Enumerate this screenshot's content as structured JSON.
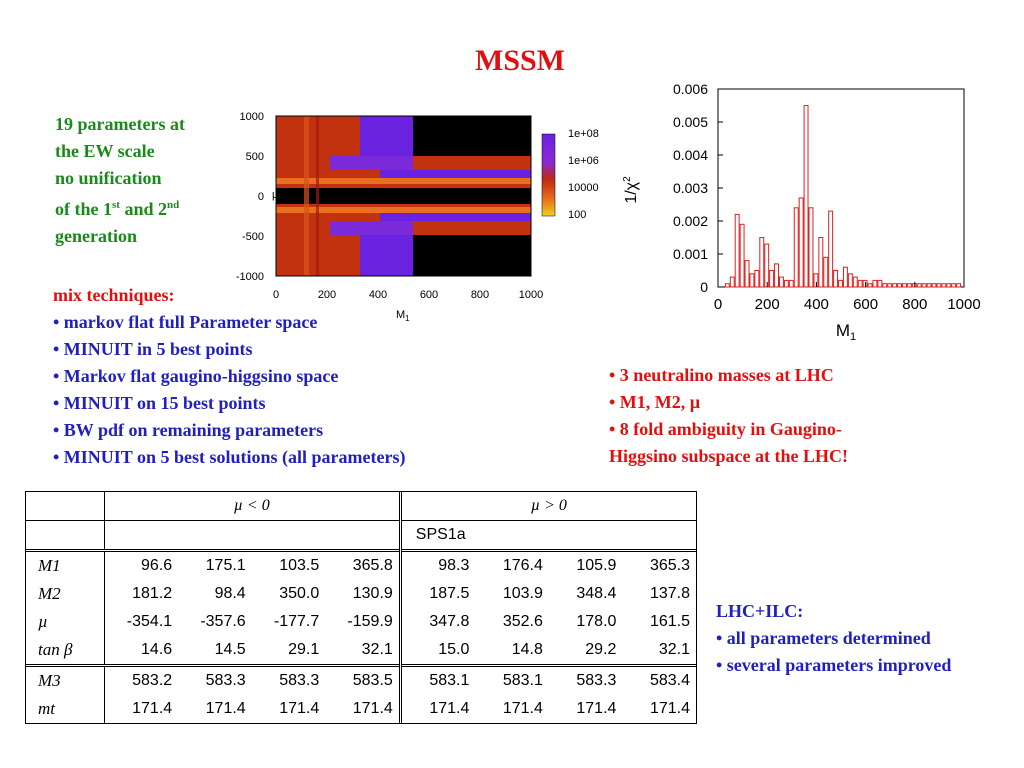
{
  "title": "MSSM",
  "intro": {
    "line1": "19 parameters at",
    "line2": "the EW scale",
    "line3": "no unification",
    "line4a": "of the 1",
    "line4sup1": "st",
    "line4b": " and 2",
    "line4sup2": "nd",
    "line5": "generation"
  },
  "mix": {
    "heading": "mix techniques:",
    "items": [
      "• markov flat full Parameter space",
      "• MINUIT in 5 best points",
      "• Markov flat gaugino-higgsino space",
      "• MINUIT on 15 best points",
      "• BW pdf on remaining parameters",
      "• MINUIT on 5 best solutions (all parameters)"
    ]
  },
  "neutralino": {
    "items": [
      "• 3 neutralino masses at LHC",
      "• M1, M2, µ",
      "• 8 fold ambiguity in Gaugino-",
      "Higgsino subspace at the LHC!"
    ]
  },
  "lhcilc": {
    "heading": "LHC+ILC:",
    "items": [
      "• all parameters determined",
      "• several parameters improved"
    ]
  },
  "scan_plot": {
    "y_ticks": [
      "1000",
      "500",
      "0",
      "-500",
      "-1000"
    ],
    "x_ticks": [
      "0",
      "200",
      "400",
      "600",
      "800",
      "1000"
    ],
    "x_label": "M",
    "x_label_sub": "1",
    "y_label": "µ",
    "colorbar_ticks": [
      "1e+08",
      "1e+06",
      "10000",
      "100"
    ],
    "colors": {
      "purple": "#6a22e0",
      "orange": "#e05a10",
      "red": "#b01a10",
      "black": "#000000",
      "yellow": "#f0d020"
    }
  },
  "chart_data": {
    "type": "bar",
    "title": "",
    "xlabel": "M",
    "xlabel_sub": "1",
    "ylabel": "1/χ",
    "ylabel_sup": "2",
    "xlim": [
      0,
      1000
    ],
    "ylim": [
      0,
      0.006
    ],
    "x_ticks": [
      "0",
      "200",
      "400",
      "600",
      "800",
      "1000"
    ],
    "y_ticks": [
      "0",
      "0.001",
      "0.002",
      "0.003",
      "0.004",
      "0.005",
      "0.006"
    ],
    "bin_width": 20,
    "x": [
      40,
      60,
      80,
      100,
      120,
      140,
      160,
      180,
      200,
      220,
      240,
      260,
      280,
      300,
      320,
      340,
      360,
      380,
      400,
      420,
      440,
      460,
      480,
      500,
      520,
      540,
      560,
      580,
      600,
      620,
      640,
      660,
      680,
      700,
      720,
      740,
      760,
      780,
      800,
      820,
      840,
      860,
      880,
      900,
      920,
      940,
      960,
      980
    ],
    "values": [
      0.0001,
      0.0003,
      0.0022,
      0.0019,
      0.0008,
      0.0004,
      0.0005,
      0.0015,
      0.0013,
      0.0005,
      0.0007,
      0.0003,
      0.0002,
      0.0002,
      0.0024,
      0.0027,
      0.0055,
      0.0024,
      0.0004,
      0.0015,
      0.0009,
      0.0023,
      0.0005,
      0.0002,
      0.0006,
      0.0004,
      0.0003,
      0.0002,
      0.0002,
      0.0001,
      0.0002,
      0.0002,
      0.0001,
      0.0001,
      0.0001,
      0.0001,
      0.0001,
      0.0001,
      0.0001,
      0.0001,
      0.0001,
      0.0001,
      0.0001,
      0.0001,
      0.0001,
      0.0001,
      0.0001,
      0.0001
    ],
    "series_color": "#e02020"
  },
  "table": {
    "header_neg": "µ < 0",
    "header_pos": "µ > 0",
    "sps": "SPS1a",
    "rows": [
      {
        "label": "M1",
        "values": [
          "96.6",
          "175.1",
          "103.5",
          "365.8",
          "98.3",
          "176.4",
          "105.9",
          "365.3"
        ]
      },
      {
        "label": "M2",
        "values": [
          "181.2",
          "98.4",
          "350.0",
          "130.9",
          "187.5",
          "103.9",
          "348.4",
          "137.8"
        ]
      },
      {
        "label": "µ",
        "values": [
          "-354.1",
          "-357.6",
          "-177.7",
          "-159.9",
          "347.8",
          "352.6",
          "178.0",
          "161.5"
        ]
      },
      {
        "label": "tan β",
        "values": [
          "14.6",
          "14.5",
          "29.1",
          "32.1",
          "15.0",
          "14.8",
          "29.2",
          "32.1"
        ]
      },
      {
        "label": "M3",
        "values": [
          "583.2",
          "583.3",
          "583.3",
          "583.5",
          "583.1",
          "583.1",
          "583.3",
          "583.4"
        ]
      },
      {
        "label": "mt",
        "values": [
          "171.4",
          "171.4",
          "171.4",
          "171.4",
          "171.4",
          "171.4",
          "171.4",
          "171.4"
        ]
      }
    ]
  }
}
